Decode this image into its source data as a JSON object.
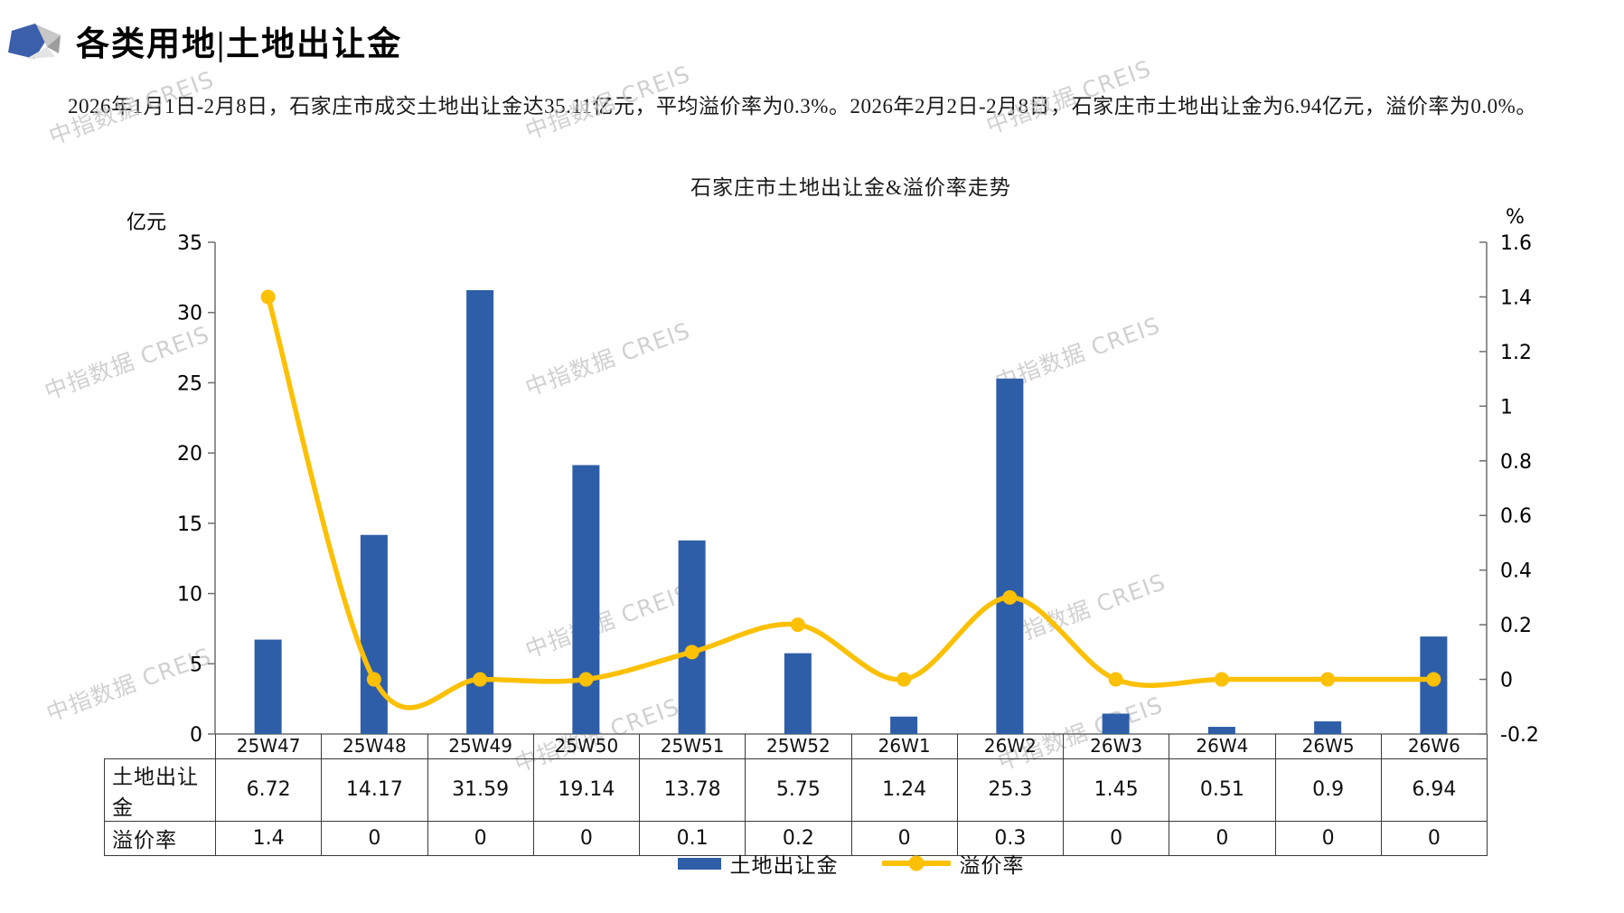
{
  "header": {
    "title": "各类用地|土地出让金"
  },
  "description": "2026年1月1日-2月8日，石家庄市成交土地出让金达35.11亿元，平均溢价率为0.3%。2026年2月2日-2月8日，石家庄市土地出让金为6.94亿元，溢价率为0.0%。",
  "watermark": {
    "text": "中指数据 CREIS"
  },
  "chart_data": {
    "type": "bar+line",
    "title": "石家庄市土地出让金&溢价率走势",
    "categories": [
      "25W47",
      "25W48",
      "25W49",
      "25W50",
      "25W51",
      "25W52",
      "26W1",
      "26W2",
      "26W3",
      "26W4",
      "26W5",
      "26W6"
    ],
    "series": [
      {
        "name": "土地出让金",
        "type": "bar",
        "axis": "left",
        "color": "#2f5ea8",
        "values": [
          6.72,
          14.17,
          31.59,
          19.14,
          13.78,
          5.75,
          1.24,
          25.3,
          1.45,
          0.51,
          0.9,
          6.94
        ]
      },
      {
        "name": "溢价率",
        "type": "line",
        "axis": "right",
        "color": "#fcc004",
        "values": [
          1.4,
          0,
          0,
          0,
          0.1,
          0.2,
          0,
          0.3,
          0,
          0,
          0,
          0
        ]
      }
    ],
    "left_axis": {
      "label": "亿元",
      "min": 0,
      "max": 35,
      "step": 5
    },
    "right_axis": {
      "label": "%",
      "min": -0.2,
      "max": 1.6,
      "step": 0.2
    },
    "grid": false,
    "legend_position": "bottom",
    "smooth_line": true
  },
  "table": {
    "row_labels": [
      "土地出让金",
      "溢价率"
    ]
  },
  "colors": {
    "bar": "#2f5ea8",
    "line": "#fcc004",
    "axis": "#6e6e6e",
    "logo_blue": "#3c5fac"
  }
}
